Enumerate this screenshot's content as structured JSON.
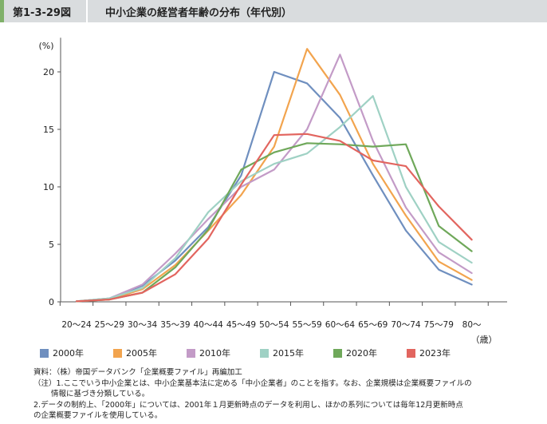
{
  "header": {
    "figure_number": "第1-3-29図",
    "title": "中小企業の経営者年齢の分布（年代別）"
  },
  "chart_data": {
    "type": "line",
    "title": "中小企業の経営者年齢の分布（年代別）",
    "ylabel": "(%)",
    "xunit": "（歳）",
    "ylim": [
      0,
      22
    ],
    "yticks": [
      0,
      5,
      10,
      15,
      20
    ],
    "grid": false,
    "legend_position": "bottom",
    "categories": [
      "20〜24",
      "25〜29",
      "30〜34",
      "35〜39",
      "40〜44",
      "45〜49",
      "50〜54",
      "55〜59",
      "60〜64",
      "65〜69",
      "70〜74",
      "75〜79",
      "80〜"
    ],
    "series": [
      {
        "name": "2000年",
        "color": "#6f8fbf",
        "values": [
          0.05,
          0.3,
          1.4,
          3.6,
          6.5,
          11.0,
          20.0,
          19.0,
          16.0,
          11.0,
          6.2,
          2.8,
          1.5
        ]
      },
      {
        "name": "2005年",
        "color": "#f2a44e",
        "values": [
          0.05,
          0.2,
          1.1,
          3.2,
          6.2,
          9.3,
          13.5,
          22.0,
          18.0,
          12.0,
          7.5,
          3.5,
          1.9
        ]
      },
      {
        "name": "2010年",
        "color": "#c39bc7",
        "values": [
          0.05,
          0.3,
          1.5,
          4.2,
          7.2,
          10.0,
          11.5,
          15.0,
          21.5,
          14.0,
          8.2,
          4.3,
          2.5
        ]
      },
      {
        "name": "2015年",
        "color": "#9fd1c4",
        "values": [
          0.05,
          0.3,
          1.2,
          3.8,
          7.8,
          10.5,
          12.0,
          12.9,
          15.2,
          17.9,
          10.0,
          5.2,
          3.4
        ]
      },
      {
        "name": "2020年",
        "color": "#6fa85a",
        "values": [
          0.05,
          0.2,
          0.8,
          3.0,
          6.3,
          11.5,
          13.0,
          13.8,
          13.7,
          13.5,
          13.7,
          6.6,
          4.4
        ]
      },
      {
        "name": "2023年",
        "color": "#e2655f",
        "values": [
          0.05,
          0.2,
          0.8,
          2.4,
          5.5,
          10.2,
          14.5,
          14.6,
          14.0,
          12.3,
          11.8,
          8.3,
          5.4
        ]
      }
    ]
  },
  "notes": [
    "資料：（株）帝国データバンク「企業概要ファイル」再編加工",
    "（注）1.ここでいう中小企業とは、中小企業基本法に定める「中小企業者」のことを指す。なお、企業規模は企業概要ファイルの",
    "情報に基づき分類している。",
    "2.データの制約上、「2000年」については、2001年１月更新時点のデータを利用し、ほかの系列については毎年12月更新時点",
    "の企業概要ファイルを使用している。"
  ]
}
